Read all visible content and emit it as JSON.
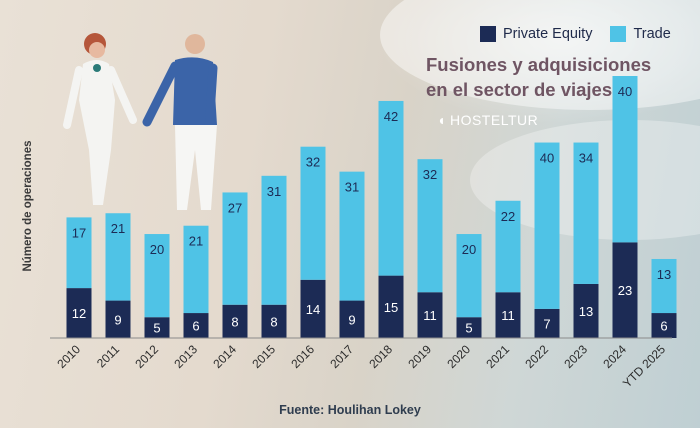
{
  "colors": {
    "private_equity": "#1c2b55",
    "trade": "#4fc3e6"
  },
  "legend": {
    "private_equity": "Private Equity",
    "trade": "Trade"
  },
  "title_line1": "Fusiones y adquisiciones",
  "title_line2": "en el sector de viajes",
  "logo_text": "HOSTELTUR",
  "source": "Fuente: Houlihan Lokey",
  "chart_data": {
    "type": "bar",
    "stacked": true,
    "categories": [
      "2010",
      "2011",
      "2012",
      "2013",
      "2014",
      "2015",
      "2016",
      "2017",
      "2018",
      "2019",
      "2020",
      "2021",
      "2022",
      "2023",
      "2024",
      "YTD 2025"
    ],
    "series": [
      {
        "name": "Private Equity",
        "values": [
          12,
          9,
          5,
          6,
          8,
          8,
          14,
          9,
          15,
          11,
          5,
          11,
          7,
          13,
          23,
          6
        ]
      },
      {
        "name": "Trade",
        "values": [
          17,
          21,
          20,
          21,
          27,
          31,
          32,
          31,
          42,
          32,
          20,
          22,
          40,
          34,
          40,
          13
        ]
      }
    ],
    "ylabel": "Número de operaciones",
    "ylim": [
      0,
      63
    ],
    "legend_position": "top-right",
    "grid": false
  }
}
